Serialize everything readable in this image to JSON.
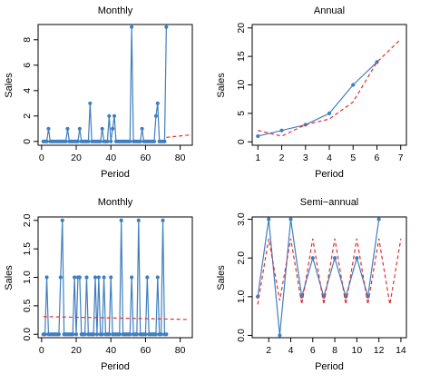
{
  "colors": {
    "series": "#3f7fbf",
    "fit": "#e03030"
  },
  "chart_data": [
    {
      "type": "line",
      "title": "Monthly",
      "xlabel": "Period",
      "ylabel": "Sales",
      "xlim": [
        -2,
        87
      ],
      "ylim": [
        -0.3,
        9.2
      ],
      "xticks": [
        0,
        20,
        40,
        60,
        80
      ],
      "yticks": [
        0,
        2,
        4,
        6,
        8
      ],
      "series": [
        {
          "style": "line-points",
          "x": [
            1,
            2,
            3,
            4,
            5,
            6,
            7,
            8,
            9,
            10,
            11,
            12,
            13,
            14,
            15,
            16,
            17,
            18,
            19,
            20,
            21,
            22,
            23,
            24,
            25,
            26,
            27,
            28,
            29,
            30,
            31,
            32,
            33,
            34,
            35,
            36,
            37,
            38,
            39,
            40,
            41,
            42,
            43,
            44,
            45,
            46,
            47,
            48,
            49,
            50,
            51,
            52,
            53,
            54,
            55,
            56,
            57,
            58,
            59,
            60,
            61,
            62,
            63,
            64,
            65,
            66,
            67,
            68,
            69,
            70,
            71,
            72
          ],
          "y": [
            0,
            0,
            0,
            1,
            0,
            0,
            0,
            0,
            0,
            0,
            0,
            0,
            0,
            0,
            1,
            0,
            0,
            0,
            0,
            0,
            0,
            1,
            0,
            0,
            0,
            0,
            0,
            3,
            0,
            0,
            0,
            0,
            0,
            0,
            1,
            0,
            0,
            0,
            2,
            0,
            1,
            2,
            0,
            0,
            0,
            0,
            0,
            0,
            0,
            0,
            0,
            9,
            0,
            0,
            0,
            0,
            0,
            1,
            0,
            0,
            0,
            0,
            0,
            0,
            0,
            2,
            3,
            0,
            0,
            0,
            0,
            9
          ]
        },
        {
          "style": "dashed",
          "x": [
            72,
            85
          ],
          "y": [
            0.32,
            0.5
          ]
        }
      ]
    },
    {
      "type": "line",
      "title": "Annual",
      "xlabel": "Period",
      "ylabel": "Sales",
      "xlim": [
        0.76,
        7.24
      ],
      "ylim": [
        -0.6,
        20.6
      ],
      "xticks": [
        1,
        2,
        3,
        4,
        5,
        6,
        7
      ],
      "yticks": [
        0,
        5,
        10,
        15,
        20
      ],
      "series": [
        {
          "style": "line-points",
          "x": [
            1,
            2,
            3,
            4,
            5,
            6
          ],
          "y": [
            1,
            2,
            3,
            5,
            10,
            14
          ]
        },
        {
          "style": "dashed",
          "x": [
            1,
            2,
            3,
            4,
            5,
            6,
            7
          ],
          "y": [
            2,
            1,
            3,
            4,
            7,
            14,
            18
          ]
        }
      ]
    },
    {
      "type": "line",
      "title": "Monthly",
      "xlabel": "Period",
      "ylabel": "Sales",
      "xlim": [
        -2,
        87
      ],
      "ylim": [
        -0.06,
        2.06
      ],
      "xticks": [
        0,
        20,
        40,
        60,
        80
      ],
      "yticks": [
        0.0,
        0.5,
        1.0,
        1.5,
        2.0
      ],
      "ytick_labels": [
        "0.0",
        "0.5",
        "1.0",
        "1.5",
        "2.0"
      ],
      "series": [
        {
          "style": "line-points",
          "x": [
            1,
            2,
            3,
            4,
            5,
            6,
            7,
            8,
            9,
            10,
            11,
            12,
            13,
            14,
            15,
            16,
            17,
            18,
            19,
            20,
            21,
            22,
            23,
            24,
            25,
            26,
            27,
            28,
            29,
            30,
            31,
            32,
            33,
            34,
            35,
            36,
            37,
            38,
            39,
            40,
            41,
            42,
            43,
            44,
            45,
            46,
            47,
            48,
            49,
            50,
            51,
            52,
            53,
            54,
            55,
            56,
            57,
            58,
            59,
            60,
            61,
            62,
            63,
            64,
            65,
            66,
            67,
            68,
            69,
            70,
            71,
            72
          ],
          "y": [
            0,
            0,
            1,
            0,
            0,
            0,
            0,
            0,
            0,
            0,
            1,
            2,
            0,
            0,
            0,
            0,
            0,
            0,
            1,
            0,
            1,
            1,
            0,
            0,
            0,
            1,
            0,
            0,
            0,
            0,
            1,
            0,
            1,
            0,
            0,
            1,
            0,
            0,
            0,
            1,
            0,
            0,
            0,
            0,
            0,
            2,
            0,
            0,
            0,
            0,
            0,
            1,
            0,
            0,
            0,
            2,
            0,
            0,
            0,
            0,
            1,
            0,
            0,
            0,
            0,
            0,
            1,
            0,
            0,
            2,
            0,
            0
          ]
        },
        {
          "style": "dashed",
          "x": [
            1,
            85
          ],
          "y": [
            0.31,
            0.26
          ]
        }
      ]
    },
    {
      "type": "line",
      "title": "Semi−annual",
      "xlabel": "Period",
      "ylabel": "Sales",
      "xlim": [
        0.5,
        14.5
      ],
      "ylim": [
        -0.06,
        3.06
      ],
      "xticks": [
        2,
        4,
        6,
        8,
        10,
        12,
        14
      ],
      "yticks": [
        0.0,
        1.0,
        2.0,
        3.0
      ],
      "ytick_labels": [
        "0.0",
        "1.0",
        "2.0",
        "3.0"
      ],
      "series": [
        {
          "style": "line-points",
          "x": [
            1,
            2,
            3,
            4,
            5,
            6,
            7,
            8,
            9,
            10,
            11,
            12
          ],
          "y": [
            1,
            3,
            0,
            3,
            1,
            2,
            1,
            2,
            1,
            2,
            1,
            3
          ]
        },
        {
          "style": "dashed",
          "x": [
            1,
            2,
            3,
            4,
            5,
            6,
            7,
            8,
            9,
            10,
            11,
            12,
            13,
            14
          ],
          "y": [
            0.8,
            2.5,
            0.9,
            2.5,
            0.8,
            2.5,
            0.8,
            2.5,
            0.8,
            2.5,
            0.8,
            2.5,
            0.8,
            2.5
          ]
        }
      ]
    }
  ]
}
